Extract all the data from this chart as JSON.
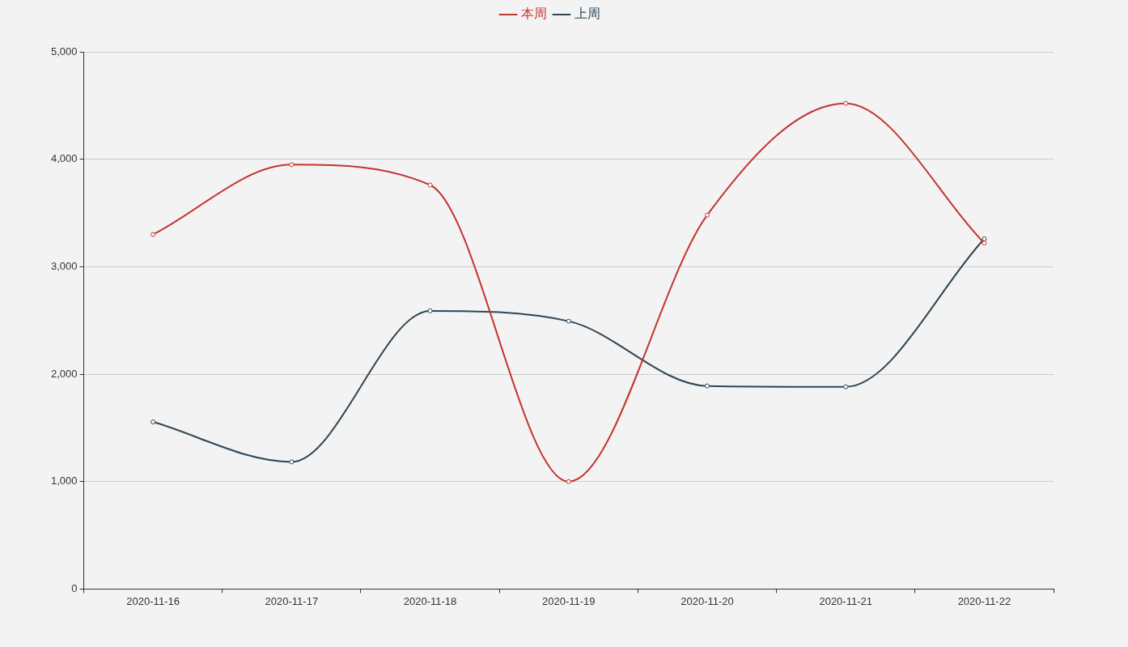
{
  "chart_data": {
    "type": "line",
    "categories": [
      "2020-11-16",
      "2020-11-17",
      "2020-11-18",
      "2020-11-19",
      "2020-11-20",
      "2020-11-21",
      "2020-11-22"
    ],
    "series": [
      {
        "name": "本周",
        "color": "#c23531",
        "values": [
          3300,
          3950,
          3760,
          1000,
          3480,
          4520,
          3220
        ]
      },
      {
        "name": "上周",
        "color": "#2f4554",
        "values": [
          1555,
          1183,
          2589,
          2493,
          1890,
          1882,
          3259
        ]
      }
    ],
    "ylim": [
      0,
      5000
    ],
    "yticks": [
      0,
      {
        "value": 1000,
        "label": "1,000"
      },
      {
        "value": 2000,
        "label": "2,000"
      },
      {
        "value": 3000,
        "label": "3,000"
      },
      {
        "value": 4000,
        "label": "4,000"
      },
      {
        "value": 5000,
        "label": "5,000"
      }
    ],
    "grid": "y",
    "legend": "top",
    "marker": "circle",
    "line_style": "solid"
  }
}
